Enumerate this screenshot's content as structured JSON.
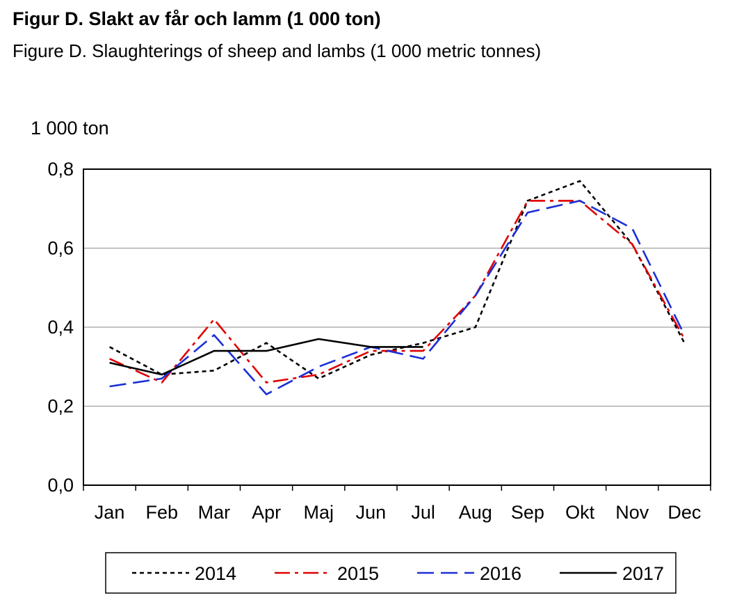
{
  "title": "Figur D. Slakt av får och lamm (1 000 ton)",
  "subtitle": "Figure D. Slaughterings of sheep and lambs (1 000 metric tonnes)",
  "chart_data": {
    "type": "line",
    "ylabel": "1 000 ton",
    "xlabel": "",
    "ylim": [
      0,
      0.8
    ],
    "yticks": [
      0,
      0.2,
      0.4,
      0.6,
      0.8
    ],
    "ytick_labels": [
      "0,0",
      "0,2",
      "0,4",
      "0,6",
      "0,8"
    ],
    "categories": [
      "Jan",
      "Feb",
      "Mar",
      "Apr",
      "Maj",
      "Jun",
      "Jul",
      "Aug",
      "Sep",
      "Okt",
      "Nov",
      "Dec"
    ],
    "grid": "horizontal",
    "legend_position": "bottom",
    "series": [
      {
        "name": "2014",
        "color": "#000000",
        "dash": "dotted",
        "values": [
          0.35,
          0.28,
          0.29,
          0.36,
          0.27,
          0.33,
          0.36,
          0.4,
          0.72,
          0.77,
          0.61,
          0.36
        ]
      },
      {
        "name": "2015",
        "color": "#e00000",
        "dash": "dash-dot",
        "values": [
          0.32,
          0.26,
          0.42,
          0.26,
          0.28,
          0.34,
          0.34,
          0.48,
          0.72,
          0.72,
          0.61,
          0.37
        ]
      },
      {
        "name": "2016",
        "color": "#1a2fd6",
        "dash": "long-dash",
        "values": [
          0.25,
          0.27,
          0.38,
          0.23,
          0.3,
          0.35,
          0.32,
          0.48,
          0.69,
          0.72,
          0.65,
          0.38
        ]
      },
      {
        "name": "2017",
        "color": "#000000",
        "dash": "solid",
        "values": [
          0.31,
          0.28,
          0.34,
          0.34,
          0.37,
          0.35,
          0.35,
          null,
          null,
          null,
          null,
          null
        ]
      }
    ]
  }
}
